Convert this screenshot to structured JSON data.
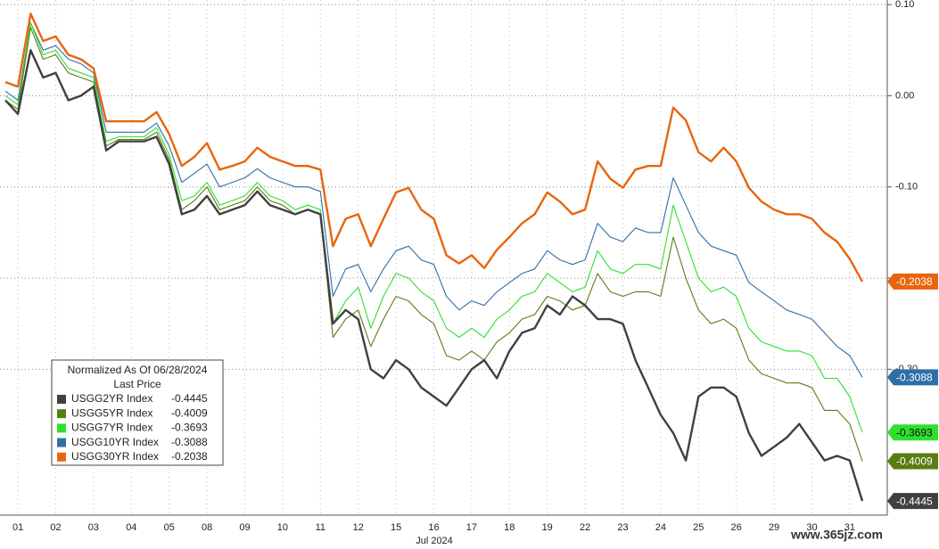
{
  "chart_data": {
    "type": "line",
    "legend_title": "Normalized As Of 06/28/2024",
    "legend_subtitle": "Last Price",
    "x_label": "Jul 2024",
    "watermark": "www.365jz.com",
    "categories": [
      null,
      "01",
      null,
      null,
      "02",
      null,
      null,
      "03",
      null,
      null,
      "04",
      null,
      null,
      "05",
      null,
      null,
      "08",
      null,
      null,
      "09",
      null,
      null,
      "10",
      null,
      null,
      "11",
      null,
      null,
      "12",
      null,
      null,
      "15",
      null,
      null,
      "16",
      null,
      null,
      "17",
      null,
      null,
      "18",
      null,
      null,
      "19",
      null,
      null,
      "22",
      null,
      null,
      "23",
      null,
      null,
      "24",
      null,
      null,
      "25",
      null,
      null,
      "26",
      null,
      null,
      "29",
      null,
      null,
      "30",
      null,
      null,
      "31",
      null
    ],
    "ylim": [
      -0.46,
      0.105
    ],
    "yticks": [
      {
        "value": 0.1,
        "label": "0.10"
      },
      {
        "value": 0,
        "label": "0.00"
      },
      {
        "value": -0.1,
        "label": "-0.10"
      },
      {
        "value": -0.2,
        "label": "-0.20"
      },
      {
        "value": -0.3,
        "label": "-0.30"
      }
    ],
    "grid": true,
    "series": [
      {
        "name": "USGG2YR Index",
        "color": "#404040",
        "last": -0.4445,
        "values": [
          -0.005,
          -0.02,
          0.05,
          0.02,
          0.025,
          -0.005,
          0.0,
          0.01,
          -0.06,
          -0.05,
          -0.05,
          -0.05,
          -0.045,
          -0.075,
          -0.13,
          -0.125,
          -0.11,
          -0.13,
          -0.125,
          -0.12,
          -0.105,
          -0.12,
          -0.125,
          -0.13,
          -0.125,
          -0.13,
          -0.25,
          -0.235,
          -0.245,
          -0.3,
          -0.31,
          -0.29,
          -0.3,
          -0.32,
          -0.33,
          -0.34,
          -0.32,
          -0.3,
          -0.29,
          -0.31,
          -0.28,
          -0.26,
          -0.255,
          -0.23,
          -0.24,
          -0.22,
          -0.23,
          -0.245,
          -0.245,
          -0.25,
          -0.29,
          -0.32,
          -0.35,
          -0.37,
          -0.4,
          -0.33,
          -0.32,
          -0.32,
          -0.33,
          -0.37,
          -0.395,
          -0.385,
          -0.375,
          -0.36,
          -0.38,
          -0.4,
          -0.395,
          -0.4,
          -0.4445
        ]
      },
      {
        "name": "USGG5YR Index",
        "color": "#5a7d12",
        "last": -0.4009,
        "values": [
          -0.005,
          -0.015,
          0.075,
          0.04,
          0.045,
          0.025,
          0.02,
          0.015,
          -0.055,
          -0.048,
          -0.048,
          -0.048,
          -0.04,
          -0.07,
          -0.125,
          -0.115,
          -0.1,
          -0.125,
          -0.12,
          -0.115,
          -0.1,
          -0.115,
          -0.12,
          -0.13,
          -0.125,
          -0.13,
          -0.265,
          -0.245,
          -0.235,
          -0.275,
          -0.245,
          -0.22,
          -0.225,
          -0.24,
          -0.25,
          -0.285,
          -0.29,
          -0.28,
          -0.29,
          -0.27,
          -0.26,
          -0.245,
          -0.24,
          -0.22,
          -0.225,
          -0.235,
          -0.23,
          -0.195,
          -0.215,
          -0.22,
          -0.215,
          -0.215,
          -0.22,
          -0.155,
          -0.2,
          -0.235,
          -0.25,
          -0.245,
          -0.255,
          -0.29,
          -0.305,
          -0.31,
          -0.315,
          -0.315,
          -0.32,
          -0.345,
          -0.345,
          -0.36,
          -0.4009
        ]
      },
      {
        "name": "USGG7YR Index",
        "color": "#2ee02e",
        "last": -0.3693,
        "values": [
          0.0,
          -0.01,
          0.08,
          0.045,
          0.05,
          0.03,
          0.025,
          0.02,
          -0.05,
          -0.045,
          -0.045,
          -0.045,
          -0.035,
          -0.065,
          -0.115,
          -0.11,
          -0.095,
          -0.12,
          -0.115,
          -0.11,
          -0.095,
          -0.11,
          -0.115,
          -0.125,
          -0.12,
          -0.125,
          -0.25,
          -0.225,
          -0.21,
          -0.255,
          -0.22,
          -0.195,
          -0.2,
          -0.215,
          -0.225,
          -0.255,
          -0.265,
          -0.255,
          -0.265,
          -0.245,
          -0.235,
          -0.22,
          -0.215,
          -0.195,
          -0.205,
          -0.215,
          -0.21,
          -0.17,
          -0.19,
          -0.195,
          -0.185,
          -0.185,
          -0.19,
          -0.12,
          -0.16,
          -0.2,
          -0.215,
          -0.21,
          -0.22,
          -0.255,
          -0.27,
          -0.275,
          -0.28,
          -0.28,
          -0.285,
          -0.31,
          -0.31,
          -0.33,
          -0.3693
        ]
      },
      {
        "name": "USGG10YR Index",
        "color": "#2f6ea8",
        "last": -0.3088,
        "values": [
          0.005,
          -0.005,
          0.08,
          0.05,
          0.055,
          0.04,
          0.035,
          0.025,
          -0.04,
          -0.04,
          -0.04,
          -0.04,
          -0.03,
          -0.055,
          -0.095,
          -0.085,
          -0.075,
          -0.1,
          -0.095,
          -0.09,
          -0.08,
          -0.09,
          -0.095,
          -0.1,
          -0.1,
          -0.105,
          -0.22,
          -0.19,
          -0.185,
          -0.215,
          -0.19,
          -0.17,
          -0.165,
          -0.18,
          -0.185,
          -0.22,
          -0.235,
          -0.225,
          -0.23,
          -0.215,
          -0.205,
          -0.195,
          -0.19,
          -0.17,
          -0.18,
          -0.185,
          -0.18,
          -0.14,
          -0.155,
          -0.16,
          -0.145,
          -0.15,
          -0.15,
          -0.09,
          -0.12,
          -0.15,
          -0.165,
          -0.17,
          -0.175,
          -0.205,
          -0.215,
          -0.225,
          -0.235,
          -0.24,
          -0.245,
          -0.26,
          -0.275,
          -0.285,
          -0.3088
        ]
      },
      {
        "name": "USGG30YR Index",
        "color": "#e8650e",
        "last": -0.2038,
        "values": [
          0.015,
          0.01,
          0.09,
          0.06,
          0.065,
          0.045,
          0.04,
          0.03,
          -0.028,
          -0.028,
          -0.028,
          -0.028,
          -0.018,
          -0.042,
          -0.077,
          -0.067,
          -0.052,
          -0.081,
          -0.077,
          -0.072,
          -0.057,
          -0.067,
          -0.072,
          -0.077,
          -0.077,
          -0.081,
          -0.165,
          -0.135,
          -0.13,
          -0.165,
          -0.135,
          -0.106,
          -0.101,
          -0.125,
          -0.135,
          -0.175,
          -0.184,
          -0.175,
          -0.189,
          -0.169,
          -0.155,
          -0.14,
          -0.13,
          -0.106,
          -0.116,
          -0.13,
          -0.125,
          -0.072,
          -0.091,
          -0.101,
          -0.081,
          -0.077,
          -0.077,
          -0.013,
          -0.027,
          -0.062,
          -0.072,
          -0.057,
          -0.072,
          -0.101,
          -0.116,
          -0.125,
          -0.13,
          -0.13,
          -0.135,
          -0.15,
          -0.16,
          -0.179,
          -0.2038
        ]
      }
    ]
  }
}
